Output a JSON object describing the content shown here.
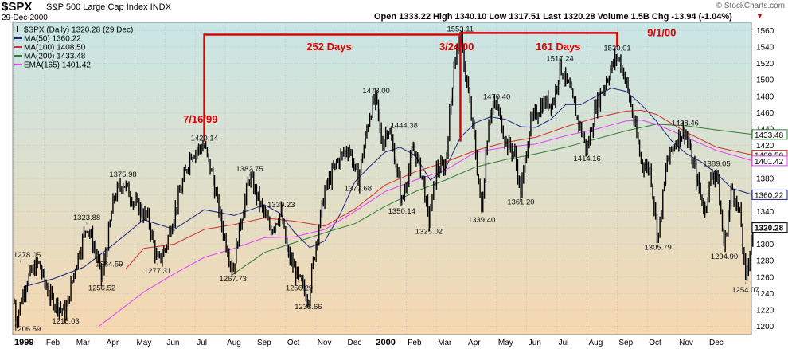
{
  "header": {
    "symbol": "$SPX",
    "name": "S&P 500 Large Cap Index INDX",
    "date": "29-Dec-2000",
    "quote": "Open 1333.22  High 1340.10  Low 1317.51  Last 1320.28  Volume 1.5B  Chg -13.94 (-1.04%)",
    "watermark": "© StockCharts.com"
  },
  "legend": [
    {
      "label": "$SPX (Daily) 1320.28 (29 Dec)",
      "color": "#000000",
      "kind": "price"
    },
    {
      "label": "MA(50) 1360.22",
      "color": "#1a237e",
      "kind": "line"
    },
    {
      "label": "MA(100) 1408.50",
      "color": "#d32f2f",
      "kind": "line"
    },
    {
      "label": "MA(200) 1433.48",
      "color": "#2e7d32",
      "kind": "line"
    },
    {
      "label": "EMA(165) 1401.42",
      "color": "#e040fb",
      "kind": "line"
    }
  ],
  "colors": {
    "price": "#000000",
    "ma50": "#1a237e",
    "ma100": "#d32f2f",
    "ma200": "#2e7d32",
    "ema165": "#e040fb",
    "annotation": "#e00000",
    "bgTop": "#c8e6e6",
    "bgBottom": "#f5d8b0"
  },
  "chart_data": {
    "type": "line",
    "title": "$SPX S&P 500 Large Cap Index INDX",
    "ylim": [
      1190,
      1570
    ],
    "xlim": [
      0,
      24.4
    ],
    "y_ticks": [
      1200,
      1220,
      1240,
      1260,
      1280,
      1300,
      1320,
      1340,
      1360,
      1380,
      1400,
      1420,
      1440,
      1460,
      1480,
      1500,
      1520,
      1540,
      1560
    ],
    "x_ticks": [
      {
        "label": "1999",
        "x": 0,
        "bold": true
      },
      {
        "label": "Feb",
        "x": 1
      },
      {
        "label": "Mar",
        "x": 2
      },
      {
        "label": "Apr",
        "x": 3
      },
      {
        "label": "May",
        "x": 4
      },
      {
        "label": "Jun",
        "x": 5
      },
      {
        "label": "Jul",
        "x": 6
      },
      {
        "label": "Aug",
        "x": 7
      },
      {
        "label": "Sep",
        "x": 8
      },
      {
        "label": "Oct",
        "x": 9
      },
      {
        "label": "Nov",
        "x": 10
      },
      {
        "label": "Dec",
        "x": 11
      },
      {
        "label": "2000",
        "x": 12,
        "bold": true
      },
      {
        "label": "Feb",
        "x": 13
      },
      {
        "label": "Mar",
        "x": 14
      },
      {
        "label": "Apr",
        "x": 15
      },
      {
        "label": "May",
        "x": 16
      },
      {
        "label": "Jun",
        "x": 17
      },
      {
        "label": "Jul",
        "x": 18
      },
      {
        "label": "Aug",
        "x": 19
      },
      {
        "label": "Sep",
        "x": 20
      },
      {
        "label": "Oct",
        "x": 21
      },
      {
        "label": "Nov",
        "x": 22
      },
      {
        "label": "Dec",
        "x": 23
      }
    ],
    "x_unit": "months since Jan 1999",
    "price_anchors": [
      [
        0.0,
        1229
      ],
      [
        0.05,
        1206.59
      ],
      [
        0.4,
        1255
      ],
      [
        0.8,
        1278.05
      ],
      [
        1.15,
        1237
      ],
      [
        1.7,
        1216.03
      ],
      [
        2.0,
        1270
      ],
      [
        2.4,
        1323.88
      ],
      [
        2.75,
        1284.59
      ],
      [
        2.9,
        1256.52
      ],
      [
        3.3,
        1356
      ],
      [
        3.6,
        1375.98
      ],
      [
        4.0,
        1350
      ],
      [
        4.45,
        1330
      ],
      [
        4.75,
        1277.31
      ],
      [
        5.0,
        1294
      ],
      [
        5.4,
        1350
      ],
      [
        5.85,
        1410
      ],
      [
        6.3,
        1420.14
      ],
      [
        6.55,
        1385
      ],
      [
        6.9,
        1320
      ],
      [
        7.25,
        1267.73
      ],
      [
        7.45,
        1315
      ],
      [
        7.8,
        1382.75
      ],
      [
        8.2,
        1345
      ],
      [
        8.5,
        1318
      ],
      [
        8.85,
        1339.23
      ],
      [
        9.05,
        1290
      ],
      [
        9.45,
        1256.29
      ],
      [
        9.75,
        1233.66
      ],
      [
        10.0,
        1300
      ],
      [
        10.3,
        1365
      ],
      [
        10.7,
        1400
      ],
      [
        11.1,
        1418
      ],
      [
        11.4,
        1377.68
      ],
      [
        11.8,
        1460
      ],
      [
        12.0,
        1478.0
      ],
      [
        12.2,
        1420
      ],
      [
        12.4,
        1444.38
      ],
      [
        12.65,
        1400
      ],
      [
        12.85,
        1350.14
      ],
      [
        13.25,
        1418
      ],
      [
        13.55,
        1380
      ],
      [
        13.75,
        1325.02
      ],
      [
        14.0,
        1390
      ],
      [
        14.3,
        1395
      ],
      [
        14.6,
        1525
      ],
      [
        14.8,
        1553.11
      ],
      [
        15.0,
        1500
      ],
      [
        15.25,
        1430
      ],
      [
        15.5,
        1339.4
      ],
      [
        15.75,
        1460
      ],
      [
        16.0,
        1470.4
      ],
      [
        16.3,
        1425
      ],
      [
        16.6,
        1410
      ],
      [
        16.8,
        1361.2
      ],
      [
        17.1,
        1445
      ],
      [
        17.5,
        1470
      ],
      [
        17.9,
        1475
      ],
      [
        18.1,
        1517.24
      ],
      [
        18.4,
        1490
      ],
      [
        18.75,
        1445
      ],
      [
        19.0,
        1414.16
      ],
      [
        19.3,
        1470
      ],
      [
        19.7,
        1505
      ],
      [
        20.0,
        1530.01
      ],
      [
        20.25,
        1505
      ],
      [
        20.5,
        1460
      ],
      [
        20.8,
        1400
      ],
      [
        21.1,
        1390
      ],
      [
        21.35,
        1305.79
      ],
      [
        21.65,
        1400
      ],
      [
        22.0,
        1430
      ],
      [
        22.25,
        1438.46
      ],
      [
        22.5,
        1400
      ],
      [
        22.9,
        1340
      ],
      [
        23.1,
        1380
      ],
      [
        23.3,
        1389.05
      ],
      [
        23.55,
        1294.9
      ],
      [
        23.8,
        1370
      ],
      [
        24.1,
        1330
      ],
      [
        24.25,
        1254.07
      ],
      [
        24.5,
        1320.28
      ]
    ],
    "series": [
      {
        "name": "MA(50)",
        "key": "ma50",
        "points": [
          [
            0.3,
            1248
          ],
          [
            1.3,
            1258
          ],
          [
            2.3,
            1272
          ],
          [
            3.3,
            1300
          ],
          [
            4.3,
            1330
          ],
          [
            5.3,
            1318
          ],
          [
            6.3,
            1342
          ],
          [
            7.3,
            1335
          ],
          [
            8.3,
            1348
          ],
          [
            8.8,
            1338
          ],
          [
            9.3,
            1314
          ],
          [
            9.8,
            1296
          ],
          [
            10.3,
            1304
          ],
          [
            10.8,
            1336
          ],
          [
            11.3,
            1376
          ],
          [
            11.8,
            1395
          ],
          [
            12.3,
            1412
          ],
          [
            12.8,
            1418
          ],
          [
            13.3,
            1408
          ],
          [
            13.8,
            1378
          ],
          [
            14.3,
            1392
          ],
          [
            14.8,
            1430
          ],
          [
            15.3,
            1448
          ],
          [
            15.8,
            1455
          ],
          [
            16.3,
            1452
          ],
          [
            16.8,
            1443
          ],
          [
            17.3,
            1442
          ],
          [
            17.8,
            1452
          ],
          [
            18.3,
            1470
          ],
          [
            18.8,
            1470
          ],
          [
            19.3,
            1480
          ],
          [
            19.8,
            1490
          ],
          [
            20.3,
            1486
          ],
          [
            20.8,
            1470
          ],
          [
            21.3,
            1450
          ],
          [
            21.8,
            1426
          ],
          [
            22.3,
            1410
          ],
          [
            22.8,
            1400
          ],
          [
            23.3,
            1386
          ],
          [
            23.8,
            1368
          ],
          [
            24.5,
            1360.22
          ]
        ]
      },
      {
        "name": "MA(100)",
        "key": "ma100",
        "points": [
          [
            3.7,
            1270
          ],
          [
            4.3,
            1295
          ],
          [
            5.3,
            1300
          ],
          [
            6.3,
            1318
          ],
          [
            7.3,
            1324
          ],
          [
            8.3,
            1332
          ],
          [
            9.3,
            1328
          ],
          [
            10.3,
            1322
          ],
          [
            11.3,
            1343
          ],
          [
            12.3,
            1372
          ],
          [
            13.3,
            1388
          ],
          [
            14.3,
            1400
          ],
          [
            15.3,
            1414
          ],
          [
            16.3,
            1424
          ],
          [
            17.3,
            1430
          ],
          [
            18.3,
            1443
          ],
          [
            19.3,
            1454
          ],
          [
            20.3,
            1462
          ],
          [
            20.8,
            1463
          ],
          [
            21.3,
            1458
          ],
          [
            22.3,
            1436
          ],
          [
            23.3,
            1418
          ],
          [
            24.5,
            1408.5
          ]
        ]
      },
      {
        "name": "MA(200)",
        "key": "ma200",
        "points": [
          [
            7.2,
            1262
          ],
          [
            8.3,
            1290
          ],
          [
            9.3,
            1302
          ],
          [
            10.3,
            1314
          ],
          [
            11.3,
            1325
          ],
          [
            12.3,
            1346
          ],
          [
            13.3,
            1364
          ],
          [
            14.3,
            1378
          ],
          [
            15.3,
            1394
          ],
          [
            16.3,
            1403
          ],
          [
            17.3,
            1410
          ],
          [
            18.3,
            1418
          ],
          [
            19.3,
            1428
          ],
          [
            20.3,
            1438
          ],
          [
            21.3,
            1446
          ],
          [
            22.3,
            1444
          ],
          [
            23.3,
            1439
          ],
          [
            24.5,
            1433.48
          ]
        ]
      },
      {
        "name": "EMA(165)",
        "key": "ema165",
        "points": [
          [
            2.8,
            1200
          ],
          [
            4.3,
            1242
          ],
          [
            5.3,
            1264
          ],
          [
            6.3,
            1284
          ],
          [
            7.3,
            1295
          ],
          [
            8.3,
            1308
          ],
          [
            9.3,
            1309
          ],
          [
            10.3,
            1318
          ],
          [
            11.3,
            1340
          ],
          [
            12.3,
            1364
          ],
          [
            13.3,
            1378
          ],
          [
            14.3,
            1390
          ],
          [
            15.3,
            1412
          ],
          [
            16.3,
            1418
          ],
          [
            17.3,
            1422
          ],
          [
            18.3,
            1432
          ],
          [
            19.3,
            1440
          ],
          [
            20.3,
            1450
          ],
          [
            20.8,
            1451
          ],
          [
            21.3,
            1446
          ],
          [
            22.3,
            1430
          ],
          [
            23.3,
            1414
          ],
          [
            24.5,
            1401.42
          ]
        ]
      }
    ],
    "point_labels": [
      {
        "text": "1206.59",
        "x": 0.05,
        "y": 1206.59,
        "pos": "below"
      },
      {
        "text": "1278.05",
        "x": 0.2,
        "y": 1278.05,
        "pos": "above"
      },
      {
        "text": "1216.03",
        "x": 1.7,
        "y": 1216.03,
        "pos": "below"
      },
      {
        "text": "1323.88",
        "x": 2.4,
        "y": 1323.88,
        "pos": "above"
      },
      {
        "text": "1256.52",
        "x": 2.9,
        "y": 1256.52,
        "pos": "below"
      },
      {
        "text": "1284.59",
        "x": 2.75,
        "y": 1284.59,
        "pos": "rightbelow"
      },
      {
        "text": "1375.98",
        "x": 3.6,
        "y": 1375.98,
        "pos": "above"
      },
      {
        "text": "1277.31",
        "x": 4.75,
        "y": 1277.31,
        "pos": "below"
      },
      {
        "text": "1420.14",
        "x": 6.3,
        "y": 1420.14,
        "pos": "above"
      },
      {
        "text": "1267.73",
        "x": 7.25,
        "y": 1267.73,
        "pos": "below"
      },
      {
        "text": "1382.75",
        "x": 7.8,
        "y": 1382.75,
        "pos": "above"
      },
      {
        "text": "1339.23",
        "x": 8.85,
        "y": 1339.23,
        "pos": "above"
      },
      {
        "text": "1256.29",
        "x": 9.45,
        "y": 1256.29,
        "pos": "below"
      },
      {
        "text": "1233.66",
        "x": 9.75,
        "y": 1233.66,
        "pos": "below"
      },
      {
        "text": "1377.68",
        "x": 11.4,
        "y": 1377.68,
        "pos": "below"
      },
      {
        "text": "1478.00",
        "x": 12.0,
        "y": 1478.0,
        "pos": "above"
      },
      {
        "text": "1444.38",
        "x": 12.4,
        "y": 1444.38,
        "pos": "right"
      },
      {
        "text": "1350.14",
        "x": 12.85,
        "y": 1350.14,
        "pos": "below"
      },
      {
        "text": "1325.02",
        "x": 13.75,
        "y": 1325.02,
        "pos": "below"
      },
      {
        "text": "1553.11",
        "x": 14.8,
        "y": 1553.11,
        "pos": "above"
      },
      {
        "text": "1339.40",
        "x": 15.5,
        "y": 1339.4,
        "pos": "below"
      },
      {
        "text": "1470.40",
        "x": 16.0,
        "y": 1470.4,
        "pos": "above"
      },
      {
        "text": "1361.20",
        "x": 16.8,
        "y": 1361.2,
        "pos": "below"
      },
      {
        "text": "1517.24",
        "x": 18.1,
        "y": 1517.24,
        "pos": "above"
      },
      {
        "text": "1414.16",
        "x": 19.0,
        "y": 1414.16,
        "pos": "below"
      },
      {
        "text": "1530.01",
        "x": 20.0,
        "y": 1530.01,
        "pos": "above"
      },
      {
        "text": "1305.79",
        "x": 21.35,
        "y": 1305.79,
        "pos": "below"
      },
      {
        "text": "1438.46",
        "x": 22.25,
        "y": 1438.46,
        "pos": "above"
      },
      {
        "text": "1389.05",
        "x": 23.3,
        "y": 1389.05,
        "pos": "above"
      },
      {
        "text": "1294.90",
        "x": 23.55,
        "y": 1294.9,
        "pos": "below"
      },
      {
        "text": "1254.07",
        "x": 24.25,
        "y": 1254.07,
        "pos": "below"
      }
    ],
    "annotations": [
      {
        "text": "7/16/99",
        "x": 5.6,
        "y": 1448
      },
      {
        "text": "252 Days",
        "x": 9.7,
        "y": 1536
      },
      {
        "text": "3/24/00",
        "x": 14.1,
        "y": 1536
      },
      {
        "text": "161 Days",
        "x": 17.3,
        "y": 1536
      },
      {
        "text": "9/1/00",
        "x": 21.0,
        "y": 1553
      }
    ],
    "brackets": [
      {
        "x1": 6.3,
        "x2": 14.8,
        "y_top": 1555,
        "y_bottom": 1425
      },
      {
        "x1": 14.8,
        "x2": 20.0,
        "y_top": 1557,
        "y_bottom": 1540
      }
    ],
    "value_tags": [
      {
        "text": "1433.48",
        "y": 1433.48,
        "color": "#2e7d32"
      },
      {
        "text": "1408.50",
        "y": 1408.5,
        "color": "#d32f2f"
      },
      {
        "text": "1401.42",
        "y": 1401.42,
        "color": "#e040fb"
      },
      {
        "text": "1360.22",
        "y": 1360.22,
        "color": "#1a237e"
      },
      {
        "text": "1320.28",
        "y": 1320.28,
        "color": "#000000",
        "bold": true
      }
    ]
  }
}
